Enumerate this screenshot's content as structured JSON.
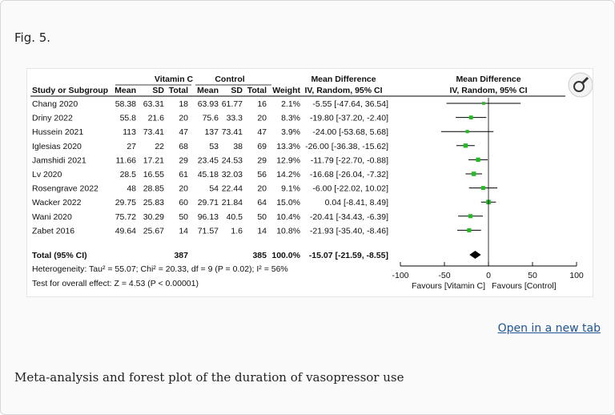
{
  "figure": {
    "label": "Fig. 5.",
    "open_link": "Open in a new tab",
    "caption": "Meta-analysis and forest plot of the duration of vasopressor use"
  },
  "chart_data": {
    "type": "forest",
    "group_headers": {
      "treatment": "Vitamin C",
      "control": "Control"
    },
    "column_headers": {
      "study": "Study or Subgroup",
      "t_mean": "Mean",
      "t_sd": "SD",
      "t_total": "Total",
      "c_mean": "Mean",
      "c_sd": "SD",
      "c_total": "Total",
      "weight": "Weight",
      "md_title": "Mean Difference",
      "md_sub": "IV, Random, 95% CI",
      "plot_title": "Mean Difference",
      "plot_sub": "IV, Random, 95% CI"
    },
    "studies": [
      {
        "name": "Chang 2020",
        "t_mean": "58.38",
        "t_sd": "63.31",
        "t_total": "18",
        "c_mean": "63.93",
        "c_sd": "61.77",
        "c_total": "16",
        "weight": "2.1%",
        "md_text": "-5.55 [-47.64, 36.54]",
        "md": -5.55,
        "lo": -47.64,
        "hi": 36.54
      },
      {
        "name": "Driny 2022",
        "t_mean": "55.8",
        "t_sd": "21.6",
        "t_total": "20",
        "c_mean": "75.6",
        "c_sd": "33.3",
        "c_total": "20",
        "weight": "8.3%",
        "md_text": "-19.80 [-37.20, -2.40]",
        "md": -19.8,
        "lo": -37.2,
        "hi": -2.4
      },
      {
        "name": "Hussein 2021",
        "t_mean": "113",
        "t_sd": "73.41",
        "t_total": "47",
        "c_mean": "137",
        "c_sd": "73.41",
        "c_total": "47",
        "weight": "3.9%",
        "md_text": "-24.00 [-53.68, 5.68]",
        "md": -24.0,
        "lo": -53.68,
        "hi": 5.68
      },
      {
        "name": "Iglesias 2020",
        "t_mean": "27",
        "t_sd": "22",
        "t_total": "68",
        "c_mean": "53",
        "c_sd": "38",
        "c_total": "69",
        "weight": "13.3%",
        "md_text": "-26.00 [-36.38, -15.62]",
        "md": -26.0,
        "lo": -36.38,
        "hi": -15.62
      },
      {
        "name": "Jamshidi 2021",
        "t_mean": "11.66",
        "t_sd": "17.21",
        "t_total": "29",
        "c_mean": "23.45",
        "c_sd": "24.53",
        "c_total": "29",
        "weight": "12.9%",
        "md_text": "-11.79 [-22.70, -0.88]",
        "md": -11.79,
        "lo": -22.7,
        "hi": -0.88
      },
      {
        "name": "Lv 2020",
        "t_mean": "28.5",
        "t_sd": "16.55",
        "t_total": "61",
        "c_mean": "45.18",
        "c_sd": "32.03",
        "c_total": "56",
        "weight": "14.2%",
        "md_text": "-16.68 [-26.04, -7.32]",
        "md": -16.68,
        "lo": -26.04,
        "hi": -7.32
      },
      {
        "name": "Rosengrave 2022",
        "t_mean": "48",
        "t_sd": "28.85",
        "t_total": "20",
        "c_mean": "54",
        "c_sd": "22.44",
        "c_total": "20",
        "weight": "9.1%",
        "md_text": "-6.00 [-22.02, 10.02]",
        "md": -6.0,
        "lo": -22.02,
        "hi": 10.02
      },
      {
        "name": "Wacker 2022",
        "t_mean": "29.75",
        "t_sd": "25.83",
        "t_total": "60",
        "c_mean": "29.71",
        "c_sd": "21.84",
        "c_total": "64",
        "weight": "15.0%",
        "md_text": "0.04 [-8.41, 8.49]",
        "md": 0.04,
        "lo": -8.41,
        "hi": 8.49
      },
      {
        "name": "Wani 2020",
        "t_mean": "75.72",
        "t_sd": "30.29",
        "t_total": "50",
        "c_mean": "96.13",
        "c_sd": "40.5",
        "c_total": "50",
        "weight": "10.4%",
        "md_text": "-20.41 [-34.43, -6.39]",
        "md": -20.41,
        "lo": -34.43,
        "hi": -6.39
      },
      {
        "name": "Zabet 2016",
        "t_mean": "49.64",
        "t_sd": "25.67",
        "t_total": "14",
        "c_mean": "71.57",
        "c_sd": "1.6",
        "c_total": "14",
        "weight": "10.8%",
        "md_text": "-21.93 [-35.40, -8.46]",
        "md": -21.93,
        "lo": -35.4,
        "hi": -8.46
      }
    ],
    "total": {
      "name": "Total (95% CI)",
      "t_total": "387",
      "c_total": "385",
      "weight": "100.0%",
      "md_text": "-15.07 [-21.59, -8.55]",
      "md": -15.07,
      "lo": -21.59,
      "hi": -8.55
    },
    "heterogeneity": "Heterogeneity: Tau² = 55.07; Chi² = 20.33, df = 9 (P = 0.02); I² = 56%",
    "overall_effect": "Test for overall effect: Z = 4.53 (P < 0.00001)",
    "axis": {
      "xlim": [
        -100,
        100
      ],
      "ticks": [
        -100,
        -50,
        0,
        50,
        100
      ],
      "tick_labels": [
        "-100",
        "-50",
        "0",
        "50",
        "100"
      ],
      "favours_left": "Favours [Vitamin C]",
      "favours_right": "Favours [Control]"
    },
    "colors": {
      "study_marker": "#22bb22",
      "summary_marker": "#000000",
      "line": "#000000"
    }
  }
}
